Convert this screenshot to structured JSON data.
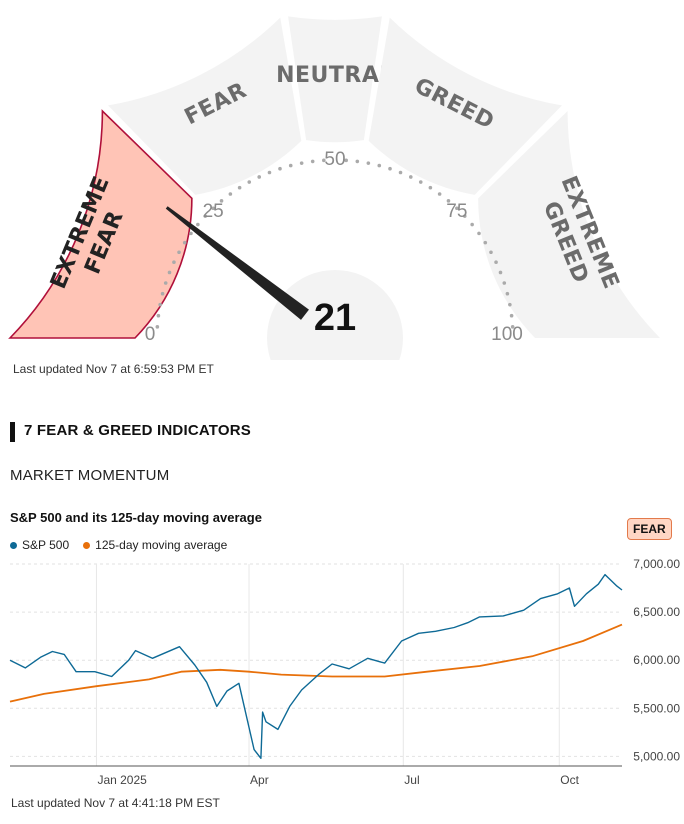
{
  "gauge": {
    "score": "21",
    "rating": "EXTREME FEAR",
    "segments": [
      {
        "name": "segment-extreme-fear",
        "lines": [
          "EXTREME",
          "FEAR"
        ],
        "active": true
      },
      {
        "name": "segment-fear",
        "lines": [
          "FEAR"
        ],
        "active": false
      },
      {
        "name": "segment-neutral",
        "lines": [
          "NEUTRAL"
        ],
        "active": false
      },
      {
        "name": "segment-greed",
        "lines": [
          "GREED"
        ],
        "active": false
      },
      {
        "name": "segment-extreme-greed",
        "lines": [
          "EXTREME",
          "GREED"
        ],
        "active": false
      }
    ],
    "tick_labels": [
      "0",
      "25",
      "50",
      "75",
      "100"
    ],
    "colors": {
      "active_fill": "#ffc4b6",
      "active_stroke": "#b0103a",
      "inactive_fill": "#f3f3f3",
      "needle": "#222222"
    }
  },
  "gauge_updated": "Last updated Nov 7 at 6:59:53 PM ET",
  "indicators_title": "7 FEAR & GREED INDICATORS",
  "section_subhead": "MARKET MOMENTUM",
  "chart_title": "S&P 500 and its 125-day moving average",
  "badge": "FEAR",
  "legend": [
    {
      "label": "S&P 500",
      "color": "#0e6a96"
    },
    {
      "label": "125-day moving average",
      "color": "#e8700a"
    }
  ],
  "chart_updated": "Last updated Nov 7 at 4:41:18 PM EST",
  "chart_data": {
    "type": "line",
    "x_labels": [
      "Jan 2025",
      "Apr",
      "Jul",
      "Oct"
    ],
    "y_ticks": [
      "5,000.00",
      "5,500.00",
      "6,000.00",
      "6,500.00",
      "7,000.00"
    ],
    "ylim": [
      4900,
      7000
    ],
    "grid": true,
    "series": [
      {
        "name": "S&P 500",
        "color": "#0e6a96",
        "x": [
          "2024-11-11",
          "2024-11-20",
          "2024-11-29",
          "2024-12-06",
          "2024-12-13",
          "2024-12-20",
          "2024-12-31",
          "2025-01-10",
          "2025-01-20",
          "2025-01-24",
          "2025-02-03",
          "2025-02-19",
          "2025-02-28",
          "2025-03-07",
          "2025-03-13",
          "2025-03-19",
          "2025-03-26",
          "2025-04-04",
          "2025-04-08",
          "2025-04-09",
          "2025-04-11",
          "2025-04-18",
          "2025-04-25",
          "2025-05-02",
          "2025-05-12",
          "2025-05-20",
          "2025-05-30",
          "2025-06-10",
          "2025-06-20",
          "2025-06-30",
          "2025-07-10",
          "2025-07-20",
          "2025-07-31",
          "2025-08-08",
          "2025-08-15",
          "2025-08-29",
          "2025-09-10",
          "2025-09-20",
          "2025-09-30",
          "2025-10-07",
          "2025-10-10",
          "2025-10-17",
          "2025-10-24",
          "2025-10-28",
          "2025-11-04",
          "2025-11-07"
        ],
        "values": [
          6000,
          5920,
          6030,
          6090,
          6060,
          5880,
          5880,
          5830,
          6000,
          6100,
          6020,
          6140,
          5950,
          5770,
          5520,
          5680,
          5760,
          5070,
          4980,
          5460,
          5360,
          5280,
          5520,
          5690,
          5850,
          5960,
          5910,
          6020,
          5970,
          6200,
          6280,
          6300,
          6340,
          6390,
          6450,
          6460,
          6520,
          6640,
          6690,
          6750,
          6560,
          6690,
          6790,
          6890,
          6770,
          6730
        ]
      },
      {
        "name": "125-day moving average",
        "color": "#e8700a",
        "x": [
          "2024-11-11",
          "2024-12-01",
          "2025-01-01",
          "2025-02-01",
          "2025-02-20",
          "2025-03-15",
          "2025-04-01",
          "2025-04-20",
          "2025-05-20",
          "2025-06-20",
          "2025-07-15",
          "2025-08-15",
          "2025-09-15",
          "2025-10-15",
          "2025-11-07"
        ],
        "values": [
          5570,
          5650,
          5730,
          5800,
          5880,
          5900,
          5880,
          5850,
          5830,
          5830,
          5880,
          5940,
          6040,
          6200,
          6370
        ]
      }
    ]
  }
}
